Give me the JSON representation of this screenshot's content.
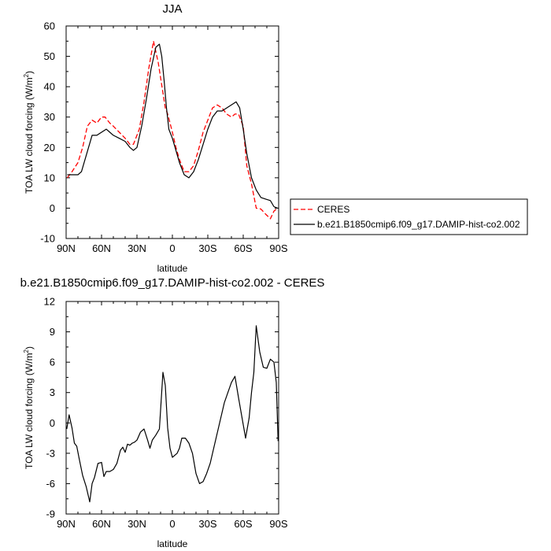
{
  "chart_data": [
    {
      "type": "line",
      "title": "JJA",
      "xlabel": "latitude",
      "ylabel": "TOA LW cloud forcing (W/m",
      "ylabel_sup": "2",
      "ylabel_end": ")",
      "xlim": [
        90,
        -90
      ],
      "ylim": [
        -10,
        60
      ],
      "xticks": [
        90,
        60,
        30,
        0,
        -30,
        -60,
        -90
      ],
      "xtick_labels": [
        "90N",
        "60N",
        "30N",
        "0",
        "30S",
        "60S",
        "90S"
      ],
      "yticks": [
        -10,
        0,
        10,
        20,
        30,
        40,
        50,
        60
      ],
      "ytick_labels": [
        "-10",
        "0",
        "10",
        "20",
        "30",
        "40",
        "50",
        "60"
      ],
      "legend_position": "right",
      "series": [
        {
          "name": "CERES",
          "style": "dashed",
          "color": "#ff0000",
          "x": [
            89,
            85,
            80,
            76,
            72,
            68,
            64,
            60,
            57,
            53,
            50,
            45,
            40,
            36,
            33,
            28,
            24,
            20,
            16,
            12,
            8,
            6,
            4,
            2,
            0,
            -3,
            -6,
            -10,
            -14,
            -18,
            -22,
            -26,
            -30,
            -34,
            -38,
            -42,
            -46,
            -50,
            -53,
            -56,
            -60,
            -63,
            -67,
            -71,
            -75,
            -79,
            -83,
            -86,
            -89
          ],
          "y": [
            10,
            12,
            15,
            20,
            27,
            29,
            28,
            30,
            30,
            28,
            27,
            25,
            23,
            21,
            21,
            26,
            35,
            46,
            55,
            48,
            38,
            33,
            31,
            28,
            25,
            20,
            16,
            12,
            12,
            14,
            19,
            25,
            29,
            33,
            34,
            33,
            31,
            30,
            31,
            31,
            27,
            14,
            8,
            0,
            -0.3,
            -2,
            -3.5,
            -1,
            0
          ]
        },
        {
          "name": "b.e21.B1850cmip6.f09_g17.DAMIP-hist-co2.002",
          "style": "solid",
          "color": "#000000",
          "x": [
            89,
            84,
            80,
            77,
            74,
            71,
            68,
            64,
            60,
            56,
            53,
            50,
            45,
            40,
            36,
            33,
            30,
            26,
            22,
            18,
            14,
            11,
            9,
            7,
            5,
            3,
            0,
            -3,
            -6,
            -10,
            -14,
            -18,
            -22,
            -26,
            -30,
            -34,
            -38,
            -42,
            -46,
            -50,
            -54,
            -57,
            -60,
            -63,
            -67,
            -71,
            -75,
            -79,
            -83,
            -86,
            -89
          ],
          "y": [
            11,
            11,
            11,
            12,
            16,
            20,
            24,
            24,
            25,
            26,
            25,
            24,
            23,
            22,
            20,
            19,
            20,
            27,
            36,
            46,
            53,
            54,
            50,
            42,
            33,
            26,
            23,
            19,
            15,
            11,
            10,
            12,
            16,
            21,
            26,
            30,
            32,
            32,
            33,
            34,
            35,
            33,
            26,
            18,
            10,
            6,
            3.5,
            3,
            2.5,
            0.5,
            0
          ]
        }
      ]
    },
    {
      "type": "line",
      "title": "b.e21.B1850cmip6.f09_g17.DAMIP-hist-co2.002 - CERES",
      "xlabel": "latitude",
      "ylabel": "TOA LW cloud forcing (W/m",
      "ylabel_sup": "2",
      "ylabel_end": ")",
      "xlim": [
        90,
        -90
      ],
      "ylim": [
        -9,
        12
      ],
      "xticks": [
        90,
        60,
        30,
        0,
        -30,
        -60,
        -90
      ],
      "xtick_labels": [
        "90N",
        "60N",
        "30N",
        "0",
        "30S",
        "60S",
        "90S"
      ],
      "yticks": [
        -9,
        -6,
        -3,
        0,
        3,
        6,
        9,
        12
      ],
      "ytick_labels": [
        "-9",
        "-6",
        "-3",
        "0",
        "3",
        "6",
        "9",
        "12"
      ],
      "series": [
        {
          "style": "solid",
          "color": "#000000",
          "x": [
            89.5,
            87.5,
            85,
            83,
            81,
            79,
            76,
            73,
            70,
            68,
            66,
            63,
            60,
            58,
            56,
            53,
            50,
            47,
            44,
            42,
            40,
            38,
            36,
            34,
            32,
            30,
            27,
            24,
            21,
            19,
            17,
            14,
            11,
            8,
            6,
            4,
            2,
            0,
            -2,
            -4,
            -6,
            -8,
            -11,
            -14,
            -17,
            -20,
            -23,
            -26,
            -29,
            -32,
            -35,
            -38,
            -41,
            -44,
            -47,
            -50,
            -53,
            -56,
            -59,
            -62,
            -65,
            -67,
            -69,
            -71,
            -74,
            -77,
            -80,
            -83,
            -86,
            -88,
            -89.5
          ],
          "y": [
            -0.6,
            0.8,
            -0.5,
            -2,
            -2.3,
            -3.5,
            -5.2,
            -6.3,
            -7.8,
            -6,
            -5.4,
            -4,
            -3.9,
            -5.3,
            -4.8,
            -4.8,
            -4.6,
            -4,
            -2.7,
            -2.4,
            -2.9,
            -2.1,
            -2.2,
            -2,
            -1.9,
            -1.7,
            -0.9,
            -0.6,
            -1.7,
            -2.5,
            -1.7,
            -1.2,
            -0.6,
            5,
            3.7,
            -0.5,
            -2.5,
            -3.4,
            -3.2,
            -3,
            -2.5,
            -1.5,
            -1.5,
            -2,
            -3,
            -5,
            -6,
            -5.8,
            -5,
            -4,
            -2.5,
            -1,
            0.5,
            2,
            3,
            4,
            4.6,
            2.5,
            0.5,
            -1.5,
            0.5,
            3,
            5,
            9.6,
            7,
            5.5,
            5.4,
            6.3,
            6,
            4,
            -1.8
          ]
        }
      ]
    }
  ]
}
